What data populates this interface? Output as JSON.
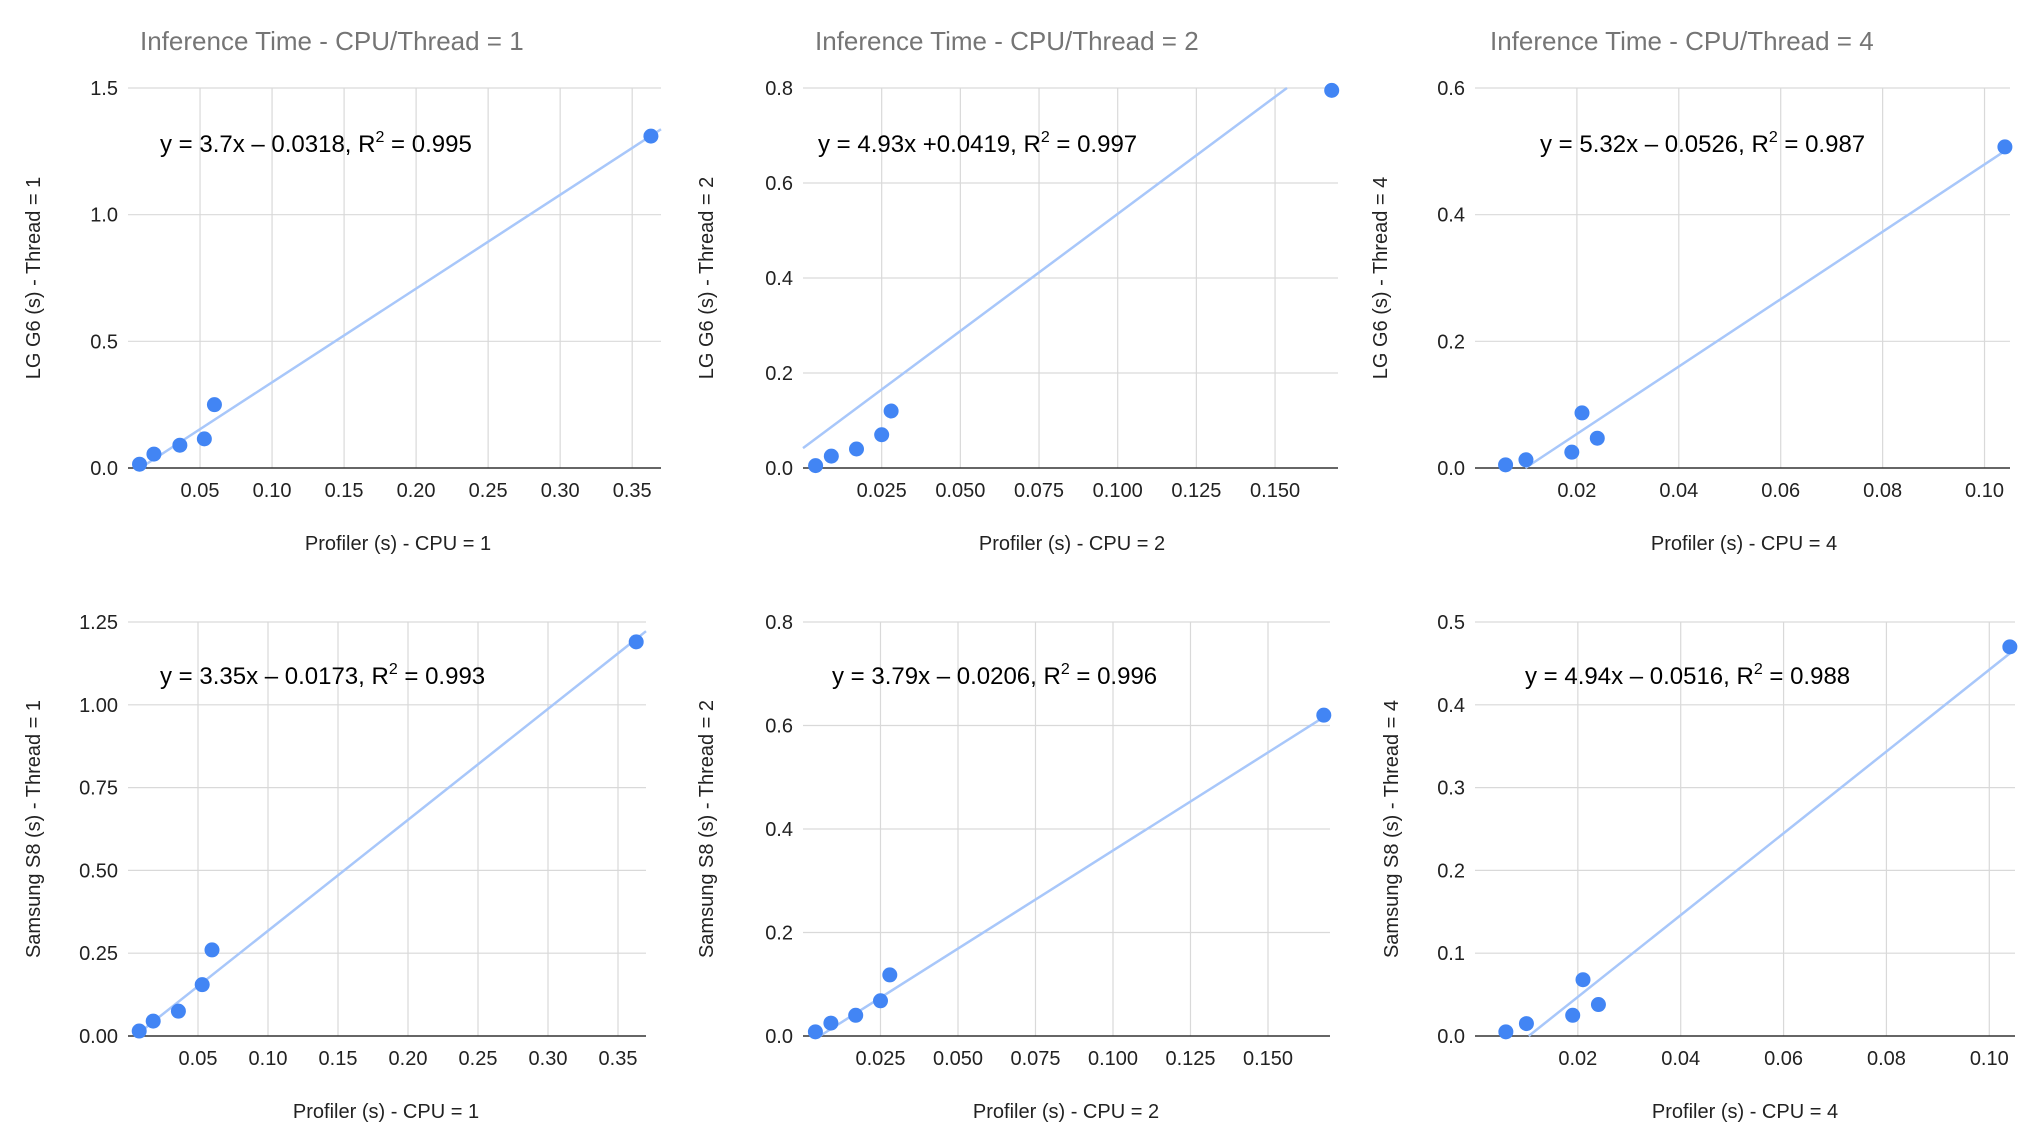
{
  "colors": {
    "point": "#4285F4",
    "trendline": "#A8C7FA",
    "grid": "#D9D9D9",
    "axis": "#333333",
    "title": "#757575",
    "text": "#222222"
  },
  "titles": [
    "Inference Time - CPU/Thread = 1",
    "Inference Time - CPU/Thread = 2",
    "Inference Time - CPU/Thread = 4"
  ],
  "chart_data": [
    {
      "type": "scatter",
      "title": "Inference Time - CPU/Thread = 1",
      "xlabel": "Profiler (s) - CPU = 1",
      "ylabel": "LG G6 (s) - Thread = 1",
      "xlim": [
        0.0,
        0.37
      ],
      "ylim": [
        0.0,
        1.5
      ],
      "xticks": [
        0.05,
        0.1,
        0.15,
        0.2,
        0.25,
        0.3,
        0.35
      ],
      "xtick_labels": [
        "0.05",
        "0.10",
        "0.15",
        "0.20",
        "0.25",
        "0.30",
        "0.35"
      ],
      "yticks": [
        0.0,
        0.5,
        1.0,
        1.5
      ],
      "ytick_labels": [
        "0.0",
        "0.5",
        "1.0",
        "1.5"
      ],
      "x": [
        0.008,
        0.018,
        0.036,
        0.053,
        0.06,
        0.363
      ],
      "y": [
        0.015,
        0.055,
        0.09,
        0.115,
        0.25,
        1.31
      ],
      "trendline": {
        "slope": 3.7,
        "intercept": -0.0318
      },
      "equation": {
        "prefix": "y = 3.7x – 0.0318,  R",
        "sup": "2",
        "suffix": " = 0.995"
      }
    },
    {
      "type": "scatter",
      "title": "Inference Time - CPU/Thread = 2",
      "xlabel": "Profiler (s) - CPU = 2",
      "ylabel": "LG G6 (s) - Thread = 2",
      "xlim": [
        0.0,
        0.17
      ],
      "ylim": [
        0.0,
        0.8
      ],
      "xticks": [
        0.025,
        0.05,
        0.075,
        0.1,
        0.125,
        0.15
      ],
      "xtick_labels": [
        "0.025",
        "0.050",
        "0.075",
        "0.100",
        "0.125",
        "0.150"
      ],
      "yticks": [
        0.0,
        0.2,
        0.4,
        0.6,
        0.8
      ],
      "ytick_labels": [
        "0.0",
        "0.2",
        "0.4",
        "0.6",
        "0.8"
      ],
      "x": [
        0.004,
        0.009,
        0.017,
        0.025,
        0.028,
        0.168
      ],
      "y": [
        0.005,
        0.025,
        0.04,
        0.07,
        0.12,
        0.795
      ],
      "trendline": {
        "slope": 4.93,
        "intercept": 0.0419
      },
      "equation": {
        "prefix": "y = 4.93x +0.0419,  R",
        "sup": "2",
        "suffix": " = 0.997"
      }
    },
    {
      "type": "scatter",
      "title": "Inference Time - CPU/Thread = 4",
      "xlabel": "Profiler (s) - CPU = 4",
      "ylabel": "LG G6 (s) - Thread = 4",
      "xlim": [
        0.0,
        0.105
      ],
      "ylim": [
        0.0,
        0.6
      ],
      "xticks": [
        0.02,
        0.04,
        0.06,
        0.08,
        0.1
      ],
      "xtick_labels": [
        "0.02",
        "0.04",
        "0.06",
        "0.08",
        "0.10"
      ],
      "yticks": [
        0.0,
        0.2,
        0.4,
        0.6
      ],
      "ytick_labels": [
        "0.0",
        "0.2",
        "0.4",
        "0.6"
      ],
      "x": [
        0.006,
        0.01,
        0.019,
        0.021,
        0.024,
        0.104
      ],
      "y": [
        0.005,
        0.013,
        0.025,
        0.087,
        0.047,
        0.507
      ],
      "trendline": {
        "slope": 5.32,
        "intercept": -0.0526
      },
      "equation": {
        "prefix": "y = 5.32x – 0.0526,  R",
        "sup": "2",
        "suffix": " = 0.987"
      }
    },
    {
      "type": "scatter",
      "title": "",
      "xlabel": "Profiler (s) - CPU = 1",
      "ylabel": "Samsung S8 (s)  - Thread = 1",
      "xlim": [
        0.0,
        0.37
      ],
      "ylim": [
        0.0,
        1.25
      ],
      "xticks": [
        0.05,
        0.1,
        0.15,
        0.2,
        0.25,
        0.3,
        0.35
      ],
      "xtick_labels": [
        "0.05",
        "0.10",
        "0.15",
        "0.20",
        "0.25",
        "0.30",
        "0.35"
      ],
      "yticks": [
        0.0,
        0.25,
        0.5,
        0.75,
        1.0,
        1.25
      ],
      "ytick_labels": [
        "0.00",
        "0.25",
        "0.50",
        "0.75",
        "1.00",
        "1.25"
      ],
      "x": [
        0.008,
        0.018,
        0.036,
        0.053,
        0.06,
        0.363
      ],
      "y": [
        0.015,
        0.045,
        0.075,
        0.155,
        0.26,
        1.19
      ],
      "trendline": {
        "slope": 3.35,
        "intercept": -0.0173
      },
      "equation": {
        "prefix": "y = 3.35x – 0.0173,  R",
        "sup": "2",
        "suffix": " = 0.993"
      }
    },
    {
      "type": "scatter",
      "title": "",
      "xlabel": "Profiler (s) - CPU = 2",
      "ylabel": "Samsung S8 (s)  - Thread = 2",
      "xlim": [
        0.0,
        0.17
      ],
      "ylim": [
        0.0,
        0.8
      ],
      "xticks": [
        0.025,
        0.05,
        0.075,
        0.1,
        0.125,
        0.15
      ],
      "xtick_labels": [
        "0.025",
        "0.050",
        "0.075",
        "0.100",
        "0.125",
        "0.150"
      ],
      "yticks": [
        0.0,
        0.2,
        0.4,
        0.6,
        0.8
      ],
      "ytick_labels": [
        "0.0",
        "0.2",
        "0.4",
        "0.6",
        "0.8"
      ],
      "x": [
        0.004,
        0.009,
        0.017,
        0.025,
        0.028,
        0.168
      ],
      "y": [
        0.008,
        0.025,
        0.04,
        0.068,
        0.118,
        0.62
      ],
      "trendline": {
        "slope": 3.79,
        "intercept": -0.0206
      },
      "equation": {
        "prefix": "y = 3.79x – 0.0206,  R",
        "sup": "2",
        "suffix": " = 0.996"
      }
    },
    {
      "type": "scatter",
      "title": "",
      "xlabel": "Profiler (s) - CPU = 4",
      "ylabel": "Samsung S8 (s)  - Thread = 4",
      "xlim": [
        0.0,
        0.105
      ],
      "ylim": [
        0.0,
        0.5
      ],
      "xticks": [
        0.02,
        0.04,
        0.06,
        0.08,
        0.1
      ],
      "xtick_labels": [
        "0.02",
        "0.04",
        "0.06",
        "0.08",
        "0.10"
      ],
      "yticks": [
        0.0,
        0.1,
        0.2,
        0.3,
        0.4,
        0.5
      ],
      "ytick_labels": [
        "0.0",
        "0.1",
        "0.2",
        "0.3",
        "0.4",
        "0.5"
      ],
      "x": [
        0.006,
        0.01,
        0.019,
        0.021,
        0.024,
        0.104
      ],
      "y": [
        0.005,
        0.015,
        0.025,
        0.068,
        0.038,
        0.47
      ],
      "trendline": {
        "slope": 4.94,
        "intercept": -0.0516
      },
      "equation": {
        "prefix": "y = 4.94x – 0.0516,  R",
        "sup": "2",
        "suffix": " = 0.988"
      }
    }
  ]
}
